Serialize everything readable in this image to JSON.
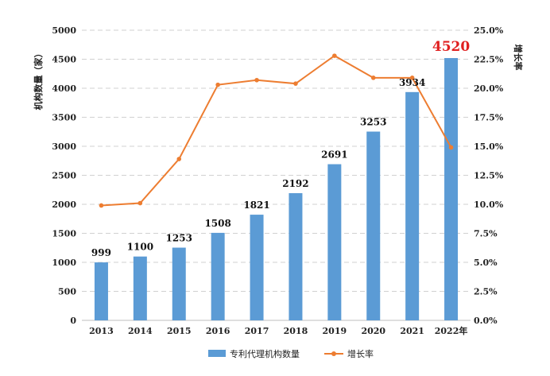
{
  "chart_data": {
    "type": "bar+line",
    "categories": [
      "2013",
      "2014",
      "2015",
      "2016",
      "2017",
      "2018",
      "2019",
      "2020",
      "2021",
      "2022年"
    ],
    "series": [
      {
        "name": "专利代理机构数量",
        "type": "bar",
        "axis": "left",
        "color": "#5b9bd5",
        "values": [
          999,
          1100,
          1253,
          1508,
          1821,
          2192,
          2691,
          3253,
          3934,
          4520
        ],
        "labels": [
          "999",
          "1100",
          "1253",
          "1508",
          "1821",
          "2192",
          "2691",
          "3253",
          "3934",
          "4520"
        ],
        "highlight_color": "#e02020"
      },
      {
        "name": "增长率",
        "type": "line",
        "axis": "right",
        "color": "#ed7d31",
        "values": [
          9.9,
          10.1,
          13.9,
          20.3,
          20.7,
          20.4,
          22.8,
          20.9,
          20.9,
          14.9
        ]
      }
    ],
    "ylabel": "机构数量（家）",
    "ylabel_right": "增长率",
    "ylim": [
      0,
      5000
    ],
    "ylim_right": [
      0,
      25
    ],
    "yticks": [
      "0",
      "500",
      "1000",
      "1500",
      "2000",
      "2500",
      "3000",
      "3500",
      "4000",
      "4500",
      "5000"
    ],
    "yticks_right": [
      "0.0%",
      "2.5%",
      "5.0%",
      "7.5%",
      "10.0%",
      "12.5%",
      "15.0%",
      "17.5%",
      "20.0%",
      "22.5%",
      "25.0%"
    ],
    "grid": true,
    "legend_position": "bottom-center"
  }
}
